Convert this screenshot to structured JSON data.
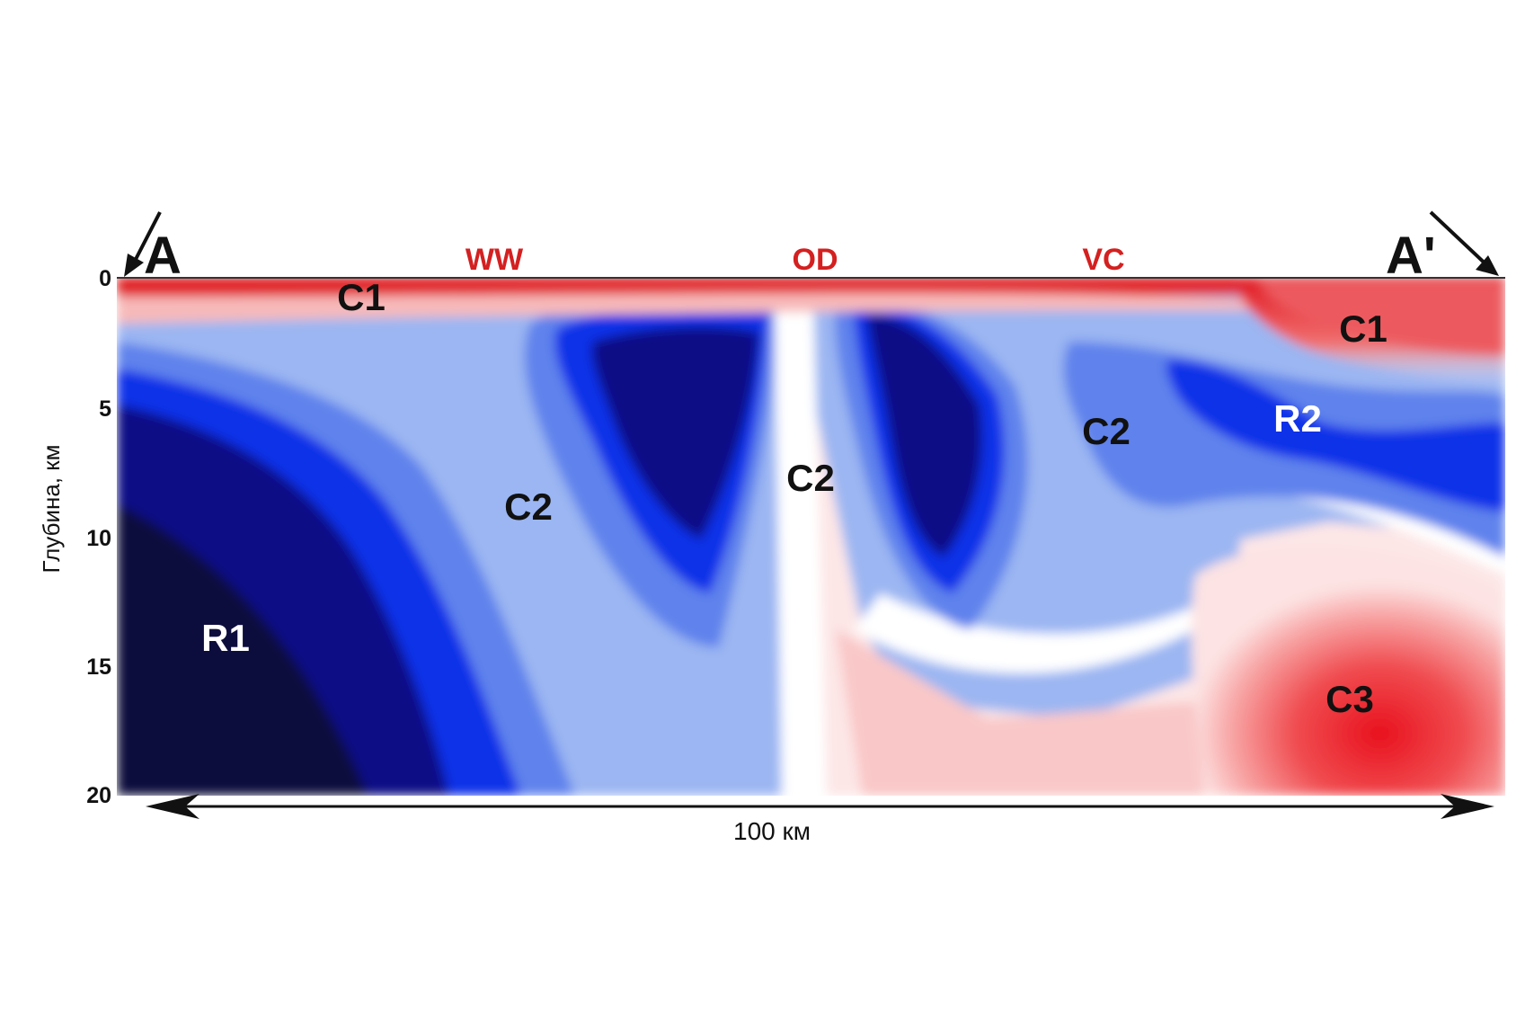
{
  "profile": {
    "start_label": "A",
    "end_label": "A'",
    "distance_label": "100 км",
    "depth_axis_label": "Глубина, км",
    "depth_ticks": [
      "0",
      "5",
      "10",
      "15",
      "20"
    ]
  },
  "surface_markers": [
    {
      "text": "WW",
      "color": "#d42020"
    },
    {
      "text": "OD",
      "color": "#d42020"
    },
    {
      "text": "VC",
      "color": "#d42020"
    }
  ],
  "zones": [
    {
      "id": "c1-left",
      "text": "C1",
      "color": "#111111"
    },
    {
      "id": "c1-right",
      "text": "C1",
      "color": "#111111"
    },
    {
      "id": "c2-left",
      "text": "C2",
      "color": "#111111"
    },
    {
      "id": "c2-center",
      "text": "C2",
      "color": "#111111"
    },
    {
      "id": "c2-right",
      "text": "C2",
      "color": "#111111"
    },
    {
      "id": "r1",
      "text": "R1",
      "color": "#ffffff"
    },
    {
      "id": "r2",
      "text": "R2",
      "color": "#ffffff"
    },
    {
      "id": "c3",
      "text": "C3",
      "color": "#111111"
    }
  ],
  "colors": {
    "conductive_red": "#e8212b",
    "light_red": "#f7b9b9",
    "neutral_white": "#ffffff",
    "light_blue": "#9bb6f2",
    "mid_blue": "#5e82ec",
    "blue": "#1030e8",
    "dark_blue": "#0a0c86",
    "navy": "#0b0b3c"
  }
}
